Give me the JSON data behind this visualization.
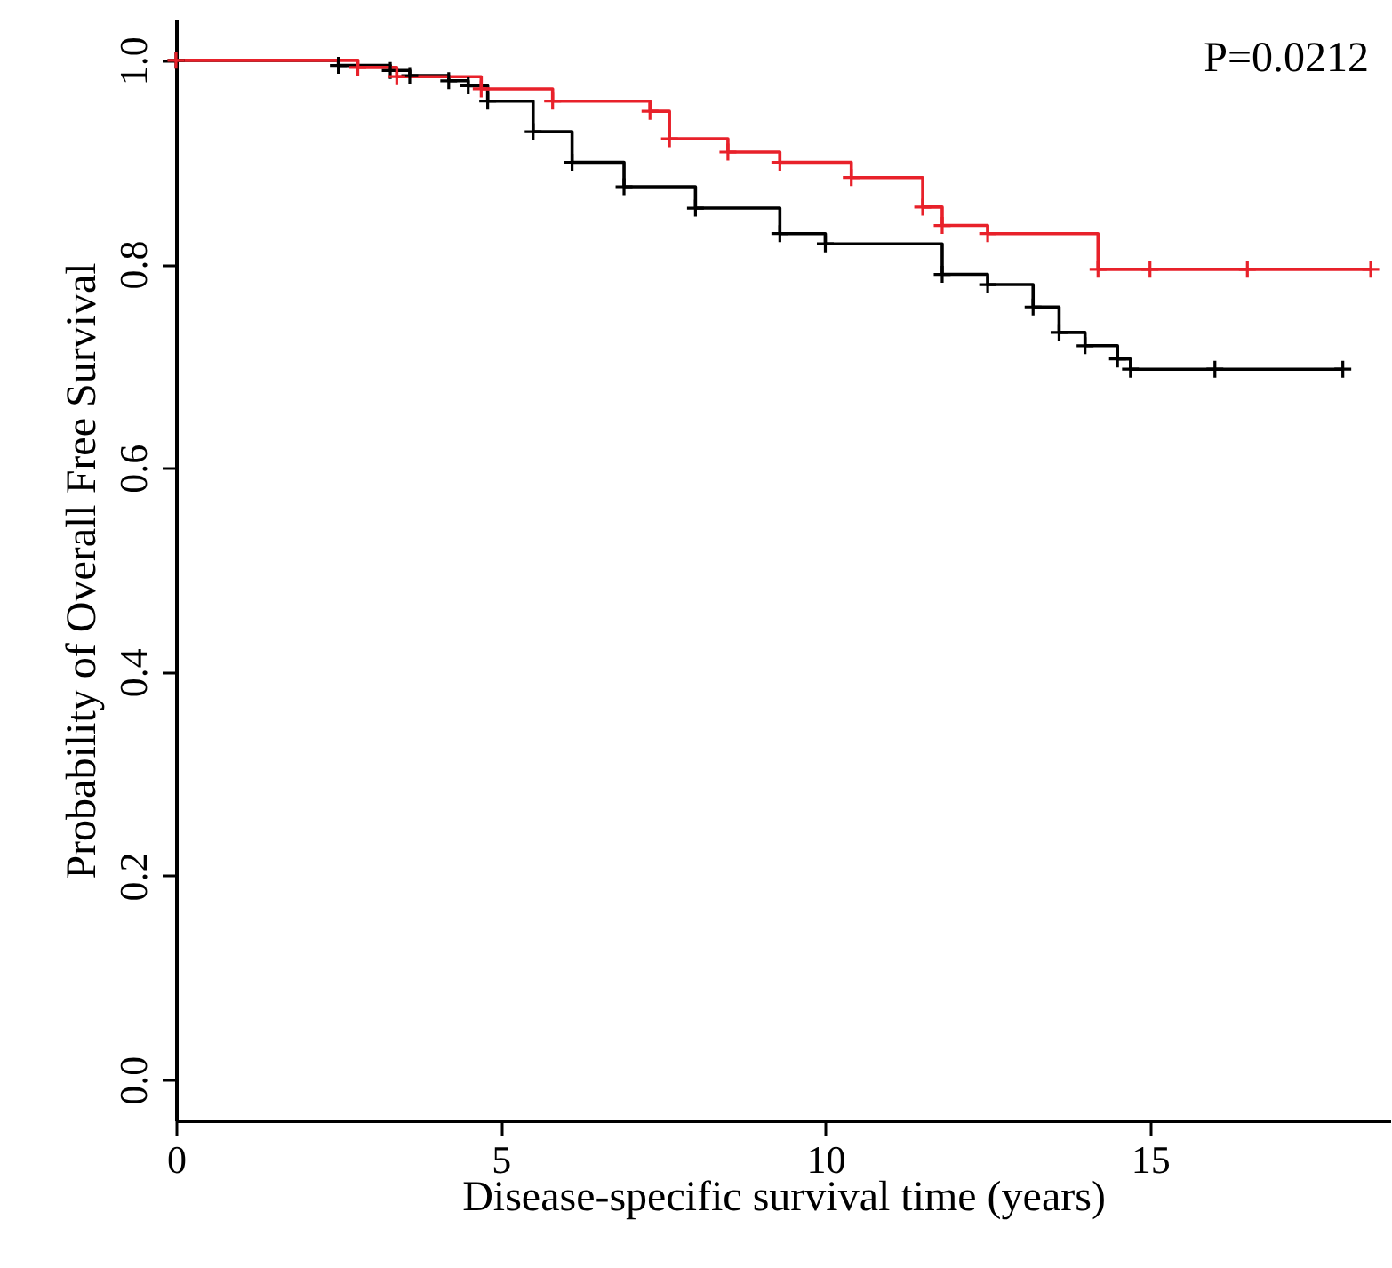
{
  "chart_data": {
    "type": "step",
    "xlabel": "Disease-specific survival time (years)",
    "ylabel": "Probability of Overall Free Survival",
    "annotations": [
      "P=0.0212"
    ],
    "xlim": [
      0,
      18.7
    ],
    "xticks": [
      0,
      5,
      10,
      15
    ],
    "ylim": [
      -0.04,
      1.04
    ],
    "yticks": [
      {
        "value": 0,
        "label": "0.0"
      },
      {
        "value": 0.2,
        "label": "0.2"
      },
      {
        "value": 0.4,
        "label": "0.4"
      },
      {
        "value": 0.6,
        "label": "0.6"
      },
      {
        "value": 0.8,
        "label": "0.8"
      },
      {
        "value": 1,
        "label": "1.0"
      }
    ],
    "grid": false,
    "marker": "cross",
    "line_style": "solid",
    "series": [
      {
        "color": "#000000",
        "x": [
          0,
          2.5,
          3.3,
          3.6,
          4.2,
          4.5,
          4.8,
          5.5,
          6.1,
          6.9,
          8.0,
          9.3,
          10,
          11.8,
          12.5,
          13.2,
          13.6,
          14.0,
          14.5,
          14.7,
          16,
          17.97
        ],
        "values": [
          1,
          0.995,
          0.99,
          0.985,
          0.98,
          0.975,
          0.96,
          0.93,
          0.9,
          0.876,
          0.855,
          0.83,
          0.82,
          0.79,
          0.78,
          0.758,
          0.733,
          0.72,
          0.707,
          0.697,
          0.697,
          0.697
        ]
      },
      {
        "color": "#e8212a",
        "x": [
          0,
          2.8,
          3.4,
          4.7,
          5.8,
          7.3,
          7.6,
          8.5,
          9.3,
          10.4,
          11.5,
          11.8,
          12.5,
          14.2,
          15,
          16.5,
          18.4
        ],
        "values": [
          1,
          0.993,
          0.984,
          0.972,
          0.96,
          0.95,
          0.923,
          0.91,
          0.9,
          0.885,
          0.856,
          0.838,
          0.83,
          0.795,
          0.795,
          0.795,
          0.795
        ]
      }
    ]
  }
}
